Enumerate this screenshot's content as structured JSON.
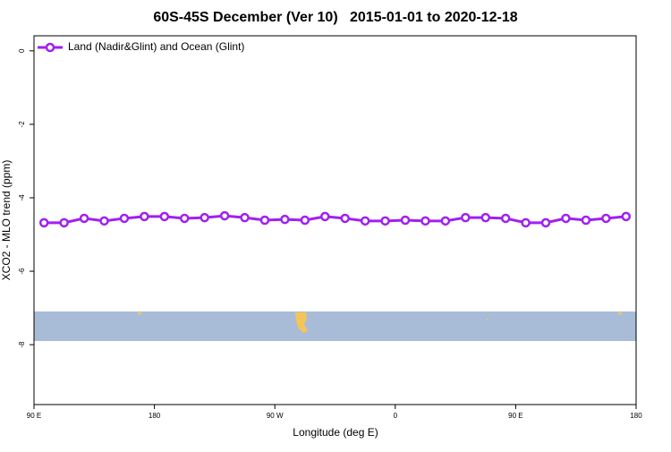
{
  "chart_data": {
    "type": "line",
    "title": "60S-45S December (Ver 10)   2015-01-01 to 2020-12-18",
    "xlabel": "Longitude (deg E)",
    "ylabel": "XCO2 - MLO trend (ppm)",
    "x": [
      97.5,
      112.5,
      127.5,
      142.5,
      157.5,
      172.5,
      187.5,
      202.5,
      217.5,
      232.5,
      247.5,
      262.5,
      277.5,
      292.5,
      307.5,
      322.5,
      337.5,
      352.5,
      367.5,
      382.5,
      397.5,
      412.5,
      427.5,
      442.5,
      457.5,
      472.5,
      487.5,
      502.5,
      517.5,
      532.5
    ],
    "series": [
      {
        "name": "Land (Nadir&Glint) and Ocean (Glint)",
        "color": "#a020f0",
        "values": [
          -4.68,
          -4.68,
          -4.56,
          -4.63,
          -4.56,
          -4.51,
          -4.51,
          -4.56,
          -4.54,
          -4.49,
          -4.54,
          -4.61,
          -4.59,
          -4.61,
          -4.51,
          -4.56,
          -4.63,
          -4.63,
          -4.61,
          -4.63,
          -4.63,
          -4.54,
          -4.54,
          -4.56,
          -4.68,
          -4.68,
          -4.56,
          -4.61,
          -4.56,
          -4.51
        ]
      }
    ],
    "xlim": [
      90,
      540
    ],
    "xticks": [
      {
        "value": 90,
        "label": "90 E"
      },
      {
        "value": 180,
        "label": "180"
      },
      {
        "value": 270,
        "label": "90 W"
      },
      {
        "value": 360,
        "label": "0"
      },
      {
        "value": 450,
        "label": "90 E"
      },
      {
        "value": 540,
        "label": "180"
      }
    ],
    "ylim": [
      -9.63,
      0.41
    ],
    "yticks": [
      0,
      -2,
      -4,
      -6,
      -8
    ],
    "legend": "top-left"
  }
}
